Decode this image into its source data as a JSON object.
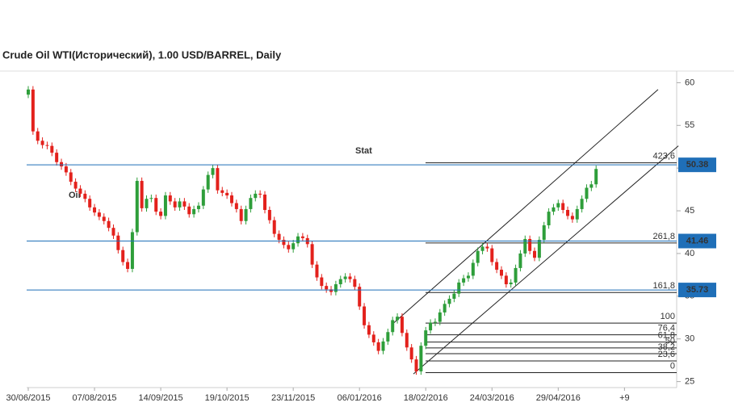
{
  "chart_data": {
    "type": "candlestick",
    "title": "Crude Oil WTI(Исторический), 1.00 USD/BARREL, Daily",
    "watermark": [
      "Oil",
      "Stat"
    ],
    "up_color": "#2e9e3a",
    "down_color": "#e3211c",
    "categories": [
      "30/06/2015",
      null,
      null,
      null,
      null,
      null,
      null,
      null,
      null,
      null,
      null,
      null,
      null,
      null,
      "07/08/2015",
      null,
      null,
      null,
      null,
      null,
      null,
      null,
      null,
      null,
      null,
      null,
      null,
      null,
      "14/09/2015",
      null,
      null,
      null,
      null,
      null,
      null,
      null,
      null,
      null,
      null,
      null,
      null,
      null,
      "19/10/2015",
      null,
      null,
      null,
      null,
      null,
      null,
      null,
      null,
      null,
      null,
      null,
      null,
      null,
      "23/11/2015",
      null,
      null,
      null,
      null,
      null,
      null,
      null,
      null,
      null,
      null,
      null,
      null,
      null,
      "06/01/2016",
      null,
      null,
      null,
      null,
      null,
      null,
      null,
      null,
      null,
      null,
      null,
      null,
      null,
      "18/02/2016",
      null,
      null,
      null,
      null,
      null,
      null,
      null,
      null,
      null,
      null,
      null,
      null,
      null,
      "24/03/2016",
      null,
      null,
      null,
      null,
      null,
      null,
      null,
      null,
      null,
      null,
      null,
      null,
      null,
      "29/04/2016",
      null,
      null,
      null,
      null,
      null,
      null,
      null,
      null,
      null,
      null,
      null,
      null,
      null,
      "+9"
    ],
    "open": [
      58.6,
      59.2,
      54.3,
      53.2,
      52.7,
      52.6,
      51.8,
      50.7,
      50.2,
      49.5,
      48.4,
      47.6,
      47.0,
      46.4,
      45.4,
      44.8,
      44.3,
      43.8,
      43.0,
      42.1,
      40.4,
      39.0,
      38.2,
      42.5,
      48.5,
      45.3,
      46.4,
      46.5,
      44.9,
      44.4,
      46.8,
      46.1,
      45.4,
      46.1,
      45.5,
      44.6,
      45.2,
      45.6,
      47.5,
      49.2,
      50.0,
      47.4,
      47.1,
      46.8,
      45.9,
      45.2,
      43.8,
      45.2,
      46.5,
      47.0,
      46.9,
      45.1,
      43.9,
      42.3,
      41.6,
      41.0,
      40.5,
      41.2,
      42.0,
      41.8,
      41.1,
      38.7,
      37.2,
      36.2,
      35.8,
      35.5,
      36.4,
      37.0,
      37.3,
      37.0,
      36.1,
      33.8,
      31.6,
      30.5,
      29.6,
      28.6,
      29.7,
      30.8,
      32.2,
      32.6,
      30.7,
      29.0,
      27.6,
      26.2,
      29.2,
      31.0,
      31.9,
      32.0,
      33.1,
      34.1,
      34.7,
      35.3,
      36.6,
      37.1,
      37.4,
      38.9,
      40.3,
      40.8,
      40.6,
      39.0,
      38.1,
      37.4,
      36.4,
      36.6,
      38.3,
      40.0,
      41.7,
      40.3,
      39.5,
      41.6,
      43.3,
      44.9,
      45.4,
      45.9,
      45.1,
      44.4,
      44.0,
      45.2,
      46.4,
      47.7,
      48.1,
      null,
      null,
      null,
      null,
      null,
      null
    ],
    "high": [
      59.6,
      59.6,
      54.7,
      53.6,
      53.1,
      53.0,
      52.2,
      51.1,
      50.6,
      49.9,
      48.8,
      48.0,
      47.4,
      46.8,
      45.8,
      45.2,
      44.7,
      44.2,
      43.4,
      42.5,
      40.8,
      39.4,
      42.9,
      48.9,
      48.9,
      46.8,
      46.9,
      46.9,
      45.3,
      47.2,
      47.2,
      46.5,
      46.5,
      46.5,
      45.9,
      45.6,
      46.0,
      47.9,
      49.6,
      50.4,
      50.4,
      47.8,
      47.5,
      47.2,
      46.3,
      45.6,
      45.6,
      46.9,
      47.4,
      47.4,
      47.3,
      45.5,
      44.3,
      42.7,
      42.0,
      41.4,
      41.6,
      42.4,
      42.4,
      42.2,
      41.5,
      39.1,
      37.6,
      36.6,
      36.2,
      36.8,
      37.4,
      37.7,
      37.7,
      37.4,
      36.5,
      34.2,
      32.0,
      30.9,
      30.0,
      30.1,
      31.2,
      32.6,
      33.0,
      33.0,
      31.1,
      29.4,
      28.0,
      29.6,
      31.4,
      32.3,
      32.4,
      33.5,
      34.5,
      35.1,
      35.7,
      37.0,
      37.5,
      37.8,
      39.3,
      40.7,
      41.2,
      41.2,
      41.0,
      39.4,
      38.5,
      37.8,
      37.0,
      38.7,
      40.4,
      42.1,
      42.1,
      40.7,
      42.0,
      43.7,
      45.3,
      45.8,
      46.3,
      46.3,
      45.5,
      44.8,
      45.6,
      46.8,
      48.1,
      48.5,
      50.3,
      null,
      null,
      null,
      null,
      null,
      null
    ],
    "low": [
      58.2,
      53.9,
      52.8,
      52.3,
      52.2,
      51.4,
      50.3,
      49.8,
      49.1,
      48.0,
      47.2,
      46.6,
      46.0,
      45.0,
      44.4,
      43.9,
      43.4,
      42.6,
      41.7,
      40.0,
      38.6,
      37.8,
      37.8,
      42.1,
      44.9,
      44.9,
      46.0,
      44.5,
      44.0,
      44.0,
      45.7,
      45.0,
      45.0,
      45.1,
      44.2,
      44.2,
      44.8,
      45.2,
      47.1,
      48.8,
      47.0,
      46.7,
      46.4,
      45.5,
      44.8,
      43.4,
      43.4,
      44.8,
      46.1,
      46.5,
      44.7,
      43.5,
      41.9,
      41.2,
      40.6,
      40.1,
      40.1,
      40.8,
      41.4,
      40.7,
      38.3,
      36.8,
      35.8,
      35.4,
      35.1,
      35.1,
      36.0,
      36.6,
      36.6,
      35.7,
      33.4,
      31.2,
      30.1,
      29.2,
      28.2,
      28.2,
      29.3,
      30.4,
      31.8,
      30.3,
      28.6,
      27.2,
      25.8,
      25.8,
      28.8,
      30.6,
      31.5,
      31.6,
      32.7,
      33.7,
      34.3,
      34.9,
      36.2,
      36.7,
      37.0,
      38.5,
      39.9,
      40.2,
      38.6,
      37.7,
      37.0,
      36.0,
      36.0,
      36.2,
      37.9,
      39.6,
      39.9,
      39.1,
      39.1,
      41.2,
      42.9,
      44.5,
      45.0,
      44.7,
      44.0,
      43.6,
      43.6,
      44.8,
      46.0,
      47.3,
      47.7,
      null,
      null,
      null,
      null,
      null,
      null
    ],
    "close": [
      59.2,
      54.3,
      53.2,
      52.7,
      52.6,
      51.8,
      50.7,
      50.2,
      49.5,
      48.4,
      47.6,
      47.0,
      46.4,
      45.4,
      44.8,
      44.3,
      43.8,
      43.0,
      42.1,
      40.4,
      39.0,
      38.2,
      42.5,
      48.5,
      45.3,
      46.4,
      46.5,
      44.9,
      44.4,
      46.8,
      46.1,
      45.4,
      46.1,
      45.5,
      44.6,
      45.2,
      45.6,
      47.5,
      49.2,
      50.0,
      47.4,
      47.1,
      46.8,
      45.9,
      45.2,
      43.8,
      45.2,
      46.5,
      47.0,
      46.9,
      45.1,
      43.9,
      42.3,
      41.6,
      41.0,
      40.5,
      41.2,
      42.0,
      41.8,
      41.1,
      38.7,
      37.2,
      36.2,
      35.8,
      35.5,
      36.4,
      37.0,
      37.3,
      37.0,
      36.1,
      33.8,
      31.6,
      30.5,
      29.6,
      28.6,
      29.7,
      30.8,
      32.2,
      32.6,
      30.7,
      29.0,
      27.6,
      26.2,
      29.2,
      31.0,
      31.9,
      32.0,
      33.1,
      34.1,
      34.7,
      35.3,
      36.6,
      37.1,
      37.4,
      38.9,
      40.3,
      40.8,
      40.6,
      39.0,
      38.1,
      37.4,
      36.4,
      36.6,
      38.3,
      40.0,
      41.7,
      40.3,
      39.5,
      41.6,
      43.3,
      44.9,
      45.4,
      45.9,
      45.1,
      44.4,
      44.0,
      45.2,
      46.4,
      47.7,
      48.1,
      49.9,
      null,
      null,
      null,
      null,
      null,
      null
    ],
    "ylim": [
      24.3,
      60.7
    ],
    "yticks": [
      25,
      30,
      35,
      40,
      45,
      50,
      55,
      60
    ],
    "price_lines": [
      50.38,
      41.46,
      35.73
    ],
    "price_line_color": "#1f6fb8",
    "fib_levels": [
      {
        "value": 50.62,
        "label": "423,6"
      },
      {
        "value": 41.23,
        "label": "261,8"
      },
      {
        "value": 35.43,
        "label": "161,8"
      },
      {
        "value": 31.85,
        "label": "100"
      },
      {
        "value": 30.48,
        "label": "76,4"
      },
      {
        "value": 29.63,
        "label": "61,8"
      },
      {
        "value": 28.95,
        "label": "50"
      },
      {
        "value": 28.27,
        "label": "38,2"
      },
      {
        "value": 27.42,
        "label": "23,6"
      },
      {
        "value": 26.05,
        "label": "0"
      }
    ],
    "trend_lines": [
      {
        "x": [
          77.3,
          133.1
        ],
        "y": [
          31.9,
          59.2
        ]
      },
      {
        "x": [
          81.4,
          137.4
        ],
        "y": [
          25.9,
          52.6
        ]
      }
    ]
  }
}
